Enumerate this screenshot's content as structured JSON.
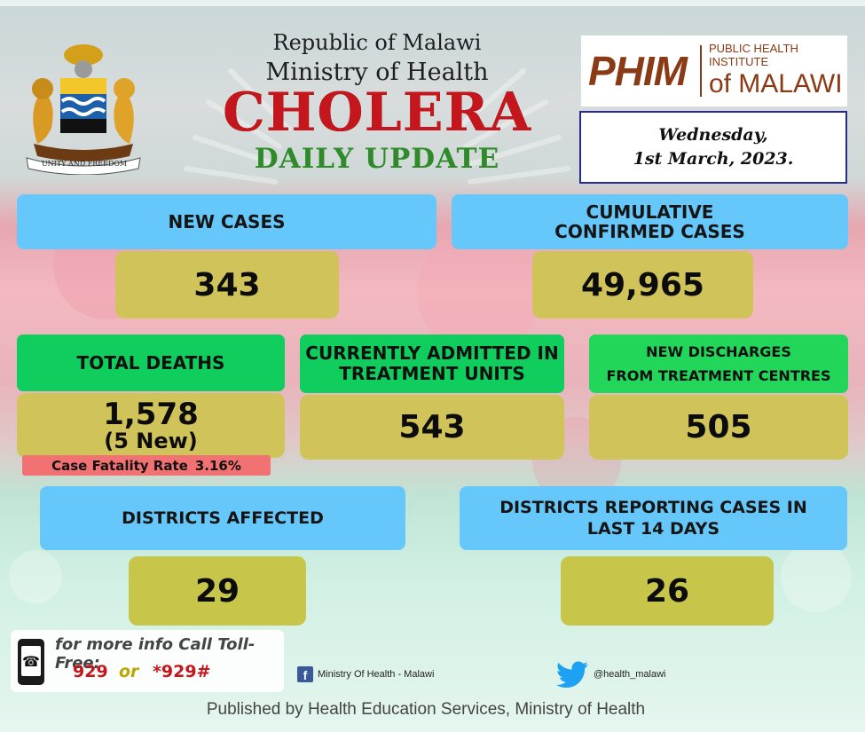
{
  "header": {
    "line1": "Republic of Malawi",
    "line2": "Ministry of Health",
    "title": "CHOLERA",
    "subtitle": "DAILY UPDATE",
    "coat_motto": "UNITY AND FREEDOM"
  },
  "institute": {
    "logo_text": "PHIM",
    "line1": "PUBLIC HEALTH INSTITUTE",
    "line2": "of MALAWI"
  },
  "date": {
    "day": "Wednesday,",
    "full": "1st March, 2023."
  },
  "stats": {
    "new_cases": {
      "label": "NEW CASES",
      "value": "343"
    },
    "cumulative": {
      "label_line1": "CUMULATIVE",
      "label_line2": "CONFIRMED CASES",
      "value": "49,965"
    },
    "deaths": {
      "label": "TOTAL DEATHS",
      "value": "1,578",
      "new": "(5 New)",
      "cfr_label": "Case Fatality Rate",
      "cfr_value": "3.16%"
    },
    "admitted": {
      "label_line1": "CURRENTLY ADMITTED IN",
      "label_line2": "TREATMENT UNITS",
      "value": "543"
    },
    "discharges": {
      "label_line1": "NEW DISCHARGES",
      "label_line2": "FROM TREATMENT CENTRES",
      "value": "505"
    },
    "districts_affected": {
      "label": "DISTRICTS AFFECTED",
      "value": "29"
    },
    "districts_reporting": {
      "label_line1": "DISTRICTS REPORTING CASES IN",
      "label_line2": "LAST 14 DAYS",
      "value": "26"
    }
  },
  "footer": {
    "info_label": "for more info Call Toll-Free:",
    "phone1": "929",
    "or": "or",
    "phone2": "*929#",
    "facebook": "Ministry Of Health - Malawi",
    "twitter": "@health_malawi",
    "published": "Published by Health Education Services, Ministry of Health"
  },
  "colors": {
    "sky": "#66c8fa",
    "green": "#0fce5d",
    "olive": "#cfc35a",
    "red_title": "#c4161c",
    "green_title": "#2f8a2a",
    "cfr": "#f27172",
    "phim_brown": "#8a3a14"
  },
  "icons": [
    "coat-of-arms-icon",
    "phone-icon",
    "facebook-icon",
    "twitter-icon"
  ]
}
